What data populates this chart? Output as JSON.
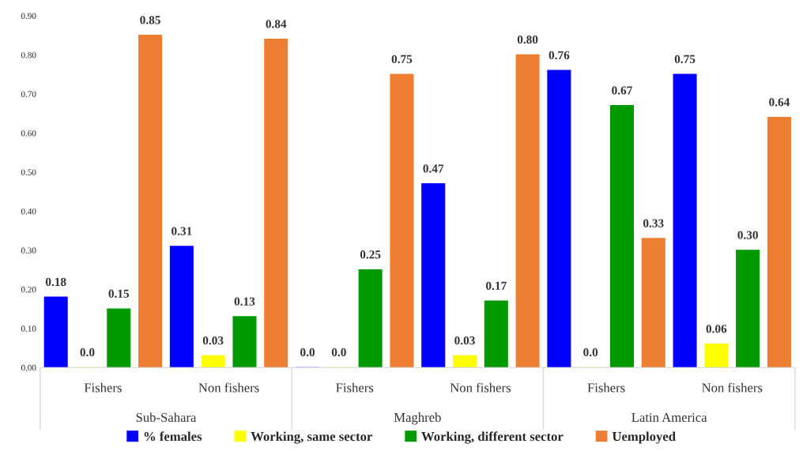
{
  "chart_data": {
    "type": "bar",
    "categories": [
      "Fishers",
      "Non fishers",
      "Fishers",
      "Non fishers",
      "Fishers",
      "Non fishers"
    ],
    "annotations": [
      "Sub-Sahara",
      "Maghreb",
      "Latin America"
    ],
    "series": [
      {
        "name": "% females",
        "color": "#0000ff",
        "values": [
          0.18,
          0.31,
          0.0,
          0.47,
          0.76,
          0.75
        ],
        "value_labels": [
          "0.18",
          "0.31",
          "0.0",
          "0.47",
          "0.76",
          "0.75"
        ]
      },
      {
        "name": "Working, same sector",
        "color": "#ffff00",
        "values": [
          0.0,
          0.03,
          0.0,
          0.03,
          0.0,
          0.06
        ],
        "value_labels": [
          "0.0",
          "0.03",
          "0.0",
          "0.03",
          "0.0",
          "0.06"
        ]
      },
      {
        "name": "Working, different sector",
        "color": "#009900",
        "values": [
          0.15,
          0.13,
          0.25,
          0.17,
          0.67,
          0.3
        ],
        "value_labels": [
          "0.15",
          "0.13",
          "0.25",
          "0.17",
          "0.67",
          "0.30"
        ]
      },
      {
        "name": "Uemployed",
        "color": "#ed7d31",
        "values": [
          0.85,
          0.84,
          0.75,
          0.8,
          0.33,
          0.64
        ],
        "value_labels": [
          "0.85",
          "0.84",
          "0.75",
          "0.80",
          "0.33",
          "0.64"
        ]
      }
    ],
    "ylim": [
      0,
      0.9
    ],
    "yticks": [
      {
        "value": 0,
        "label": "0.00"
      },
      {
        "value": 0.1,
        "label": "0.10"
      },
      {
        "value": 0.2,
        "label": "0.20"
      },
      {
        "value": 0.3,
        "label": "0.30"
      },
      {
        "value": 0.4,
        "label": "0.40"
      },
      {
        "value": 0.5,
        "label": "0.50"
      },
      {
        "value": 0.6,
        "label": "0.60"
      },
      {
        "value": 0.7,
        "label": "0.70"
      },
      {
        "value": 0.8,
        "label": "0.80"
      },
      {
        "value": 0.9,
        "label": "0.90"
      }
    ],
    "grid": false,
    "legend": "bottom"
  }
}
